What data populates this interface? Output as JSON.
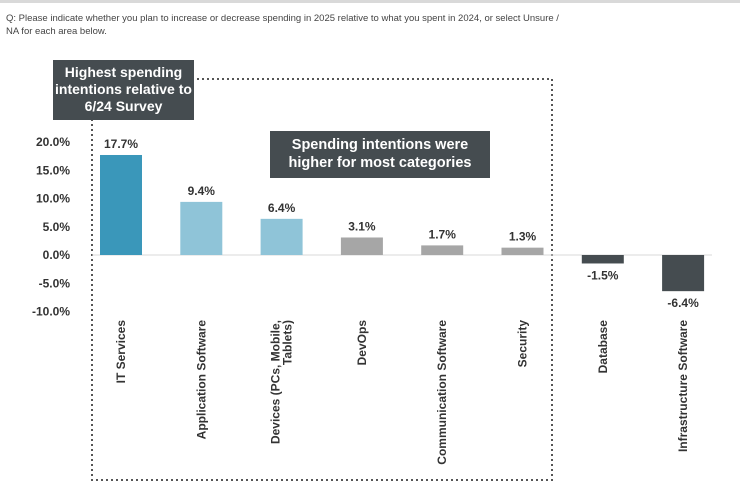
{
  "question": "Q: Please indicate whether you plan to increase or decrease spending in 2025 relative to what you spent in 2024, or select Unsure / NA for each area below.",
  "callouts": {
    "left": "Highest spending intentions relative to 6/24 Survey",
    "middle": "Spending intentions were higher for most categories"
  },
  "colors": {
    "dark_blue": "#3a97ba",
    "light_blue": "#8fc4d8",
    "gray": "#a6a6a6",
    "dark_gray": "#454c50",
    "dotted_border": "#555555"
  },
  "chart_data": {
    "type": "bar",
    "categories": [
      "IT Services",
      "Application Software",
      "Devices (PCs, Mobile, Tablets)",
      "DevOps",
      "Communication Software",
      "Security",
      "Database",
      "Infrastructure Software"
    ],
    "values": [
      17.7,
      9.4,
      6.4,
      3.1,
      1.7,
      1.3,
      -1.5,
      -6.4
    ],
    "value_labels": [
      "17.7%",
      "9.4%",
      "6.4%",
      "3.1%",
      "1.7%",
      "1.3%",
      "-1.5%",
      "-6.4%"
    ],
    "bar_colors": [
      "#3a97ba",
      "#8fc4d8",
      "#8fc4d8",
      "#a6a6a6",
      "#a6a6a6",
      "#a6a6a6",
      "#454c50",
      "#454c50"
    ],
    "ylim": [
      -10,
      20
    ],
    "yticks": [
      20,
      15,
      10,
      5,
      0,
      -5,
      -10
    ],
    "ytick_labels": [
      "20.0%",
      "15.0%",
      "10.0%",
      "5.0%",
      "0.0%",
      "-5.0%",
      "-10.0%"
    ],
    "grid": false,
    "title": "",
    "xlabel": "",
    "ylabel": ""
  }
}
